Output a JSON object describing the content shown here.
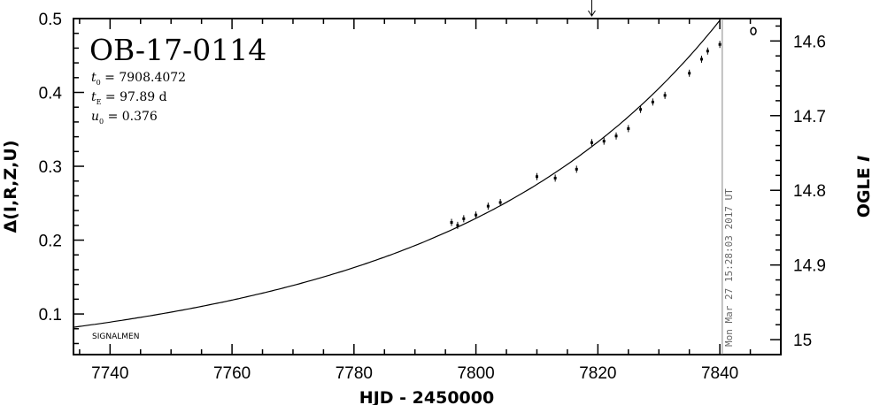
{
  "chart_data": {
    "type": "scatter",
    "title": "OB-17-0114",
    "params": [
      {
        "symbol": "t",
        "sub": "0",
        "text": " = 7908.4072"
      },
      {
        "symbol": "t",
        "sub": "E",
        "text": " = 97.89 d"
      },
      {
        "symbol": "u",
        "sub": "0",
        "text": " = 0.376"
      }
    ],
    "xlabel": "HJD - 2450000",
    "ylabel": "Δ(I,R,Z,U)",
    "y2label": "OGLE I",
    "xlim": [
      7734,
      7850
    ],
    "ylim": [
      0.045,
      0.5
    ],
    "x_ticks": [
      7740,
      7760,
      7780,
      7800,
      7820,
      7840
    ],
    "y_ticks": [
      "0.1",
      "0.2",
      "0.3",
      "0.4",
      "0.5"
    ],
    "y2_ticks": [
      "14.6",
      "14.7",
      "14.8",
      "14.9",
      "15"
    ],
    "y2_lim": [
      15.02,
      14.57
    ],
    "model": {
      "t0": 7908.4072,
      "tE": 97.89,
      "u0": 0.376
    },
    "points": [
      {
        "x": 7796.0,
        "y": 0.224
      },
      {
        "x": 7797.0,
        "y": 0.22
      },
      {
        "x": 7798.0,
        "y": 0.229
      },
      {
        "x": 7800.0,
        "y": 0.234
      },
      {
        "x": 7802.0,
        "y": 0.246
      },
      {
        "x": 7804.0,
        "y": 0.251
      },
      {
        "x": 7810.0,
        "y": 0.286
      },
      {
        "x": 7813.0,
        "y": 0.284
      },
      {
        "x": 7816.5,
        "y": 0.296
      },
      {
        "x": 7819.0,
        "y": 0.332
      },
      {
        "x": 7821.0,
        "y": 0.334
      },
      {
        "x": 7823.0,
        "y": 0.341
      },
      {
        "x": 7825.0,
        "y": 0.351
      },
      {
        "x": 7827.0,
        "y": 0.377
      },
      {
        "x": 7829.0,
        "y": 0.387
      },
      {
        "x": 7831.0,
        "y": 0.396
      },
      {
        "x": 7835.0,
        "y": 0.426
      },
      {
        "x": 7837.0,
        "y": 0.445
      },
      {
        "x": 7838.0,
        "y": 0.456
      },
      {
        "x": 7840.0,
        "y": 0.465
      }
    ],
    "open_points": [
      {
        "x": 7845.5,
        "y": 0.483
      }
    ],
    "now_line_x": 7840.4,
    "arrow_x": 7819.0,
    "now_stamp": "Mon Mar 27 15:28:03 2017 UT",
    "credit": "SIGNALMEN",
    "colors": {
      "axis": "#000000",
      "data": "#000000",
      "stamp_line": "#888888",
      "stamp_text": "#666666"
    }
  }
}
